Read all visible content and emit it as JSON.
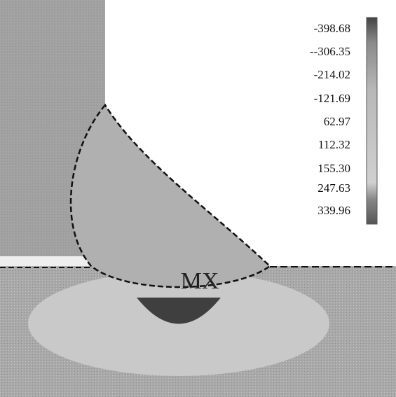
{
  "legend": {
    "labels": [
      "-398.68",
      "--306.35",
      "-214.02",
      "-121.69",
      "62.97",
      "112.32",
      "155.30",
      "247.63",
      "339.96"
    ]
  },
  "annotation": "MX"
}
